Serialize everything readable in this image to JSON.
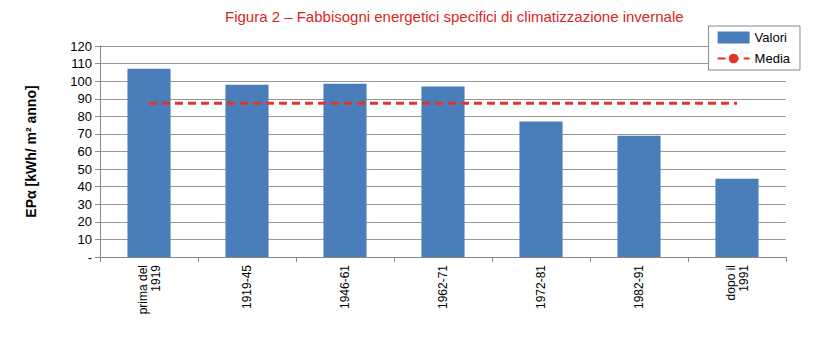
{
  "chart_data": {
    "type": "bar",
    "title": "Figura 2 – Fabbisogni energetici specifici di climatizzazione invernale",
    "y_label": "EPα [kWh/ m² anno]",
    "categories": [
      "prima del\n1919",
      "1919-45",
      "1946-61",
      "1962-71",
      "1972-81",
      "1982-91",
      "dopo il\n1991"
    ],
    "series": [
      {
        "name": "Valori",
        "type": "bar",
        "color": "#4a7ebb",
        "values": [
          107,
          98,
          98.5,
          97,
          77,
          69,
          44.5
        ]
      },
      {
        "name": "Media",
        "type": "line",
        "color": "#e0342b",
        "line_style": "dashed",
        "values": [
          87.5,
          87.5,
          87.5,
          87.5,
          87.5,
          87.5,
          87.5
        ]
      }
    ],
    "ylim": [
      0,
      120
    ],
    "yticks": [
      {
        "value": 0,
        "label": "-"
      },
      10,
      20,
      30,
      40,
      50,
      60,
      70,
      80,
      90,
      100,
      110,
      120
    ],
    "grid": true,
    "legend": "upper right"
  }
}
